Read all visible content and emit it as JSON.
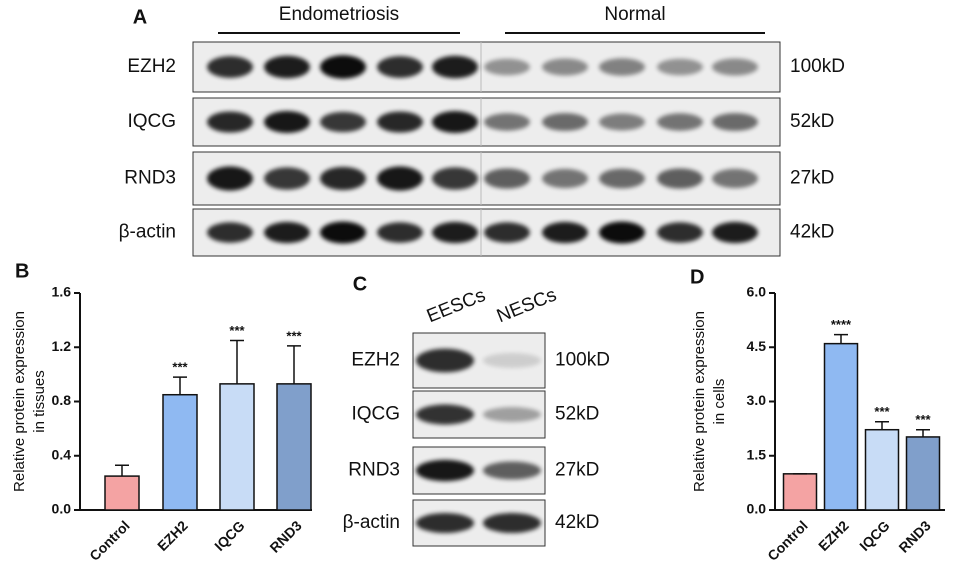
{
  "chart_data": [
    {
      "type": "bar",
      "panel": "B",
      "ylabel": [
        "Relative protein expression",
        "in tissues"
      ],
      "categories": [
        "Control",
        "EZH2",
        "IQCG",
        "RND3"
      ],
      "values": [
        0.25,
        0.85,
        0.93,
        0.93
      ],
      "errors": [
        0.08,
        0.13,
        0.32,
        0.28
      ],
      "annotations": [
        null,
        "***",
        "***",
        "***"
      ],
      "colors": [
        "#f4a3a3",
        "#8fb9f2",
        "#c8dcf6",
        "#809fcb"
      ],
      "ylim": [
        0,
        1.6
      ],
      "yticks": [
        {
          "value": 0,
          "label": "0.0"
        },
        0.4,
        0.8,
        1.2,
        1.6
      ]
    },
    {
      "type": "bar",
      "panel": "D",
      "ylabel": [
        "Relative protein expression",
        "in cells"
      ],
      "categories": [
        "Control",
        "EZH2",
        "IQCG",
        "RND3"
      ],
      "values": [
        1.0,
        4.6,
        2.22,
        2.02
      ],
      "errors": [
        0,
        0.25,
        0.22,
        0.2
      ],
      "annotations": [
        null,
        "****",
        "***",
        "***"
      ],
      "colors": [
        "#f4a3a3",
        "#8fb9f2",
        "#c8dcf6",
        "#809fcb"
      ],
      "ylim": [
        0,
        6
      ],
      "yticks": [
        {
          "value": 0,
          "label": "0.0"
        },
        1.5,
        {
          "value": 3,
          "label": "3.0"
        },
        4.5,
        {
          "value": 6,
          "label": "6.0"
        }
      ]
    }
  ],
  "blots": [
    {
      "panel": "A",
      "groups": [
        "Endometriosis",
        "Normal"
      ],
      "rows": [
        {
          "protein": "EZH2",
          "size": "100kD"
        },
        {
          "protein": "IQCG",
          "size": "52kD"
        },
        {
          "protein": "RND3",
          "size": "27kD"
        },
        {
          "protein": "β-actin",
          "size": "42kD"
        }
      ]
    },
    {
      "panel": "C",
      "groups": [
        "EESCs",
        "NESCs"
      ],
      "rows": [
        {
          "protein": "EZH2",
          "size": "100kD"
        },
        {
          "protein": "IQCG",
          "size": "52kD"
        },
        {
          "protein": "RND3",
          "size": "27kD"
        },
        {
          "protein": "β-actin",
          "size": "42kD"
        }
      ]
    }
  ]
}
